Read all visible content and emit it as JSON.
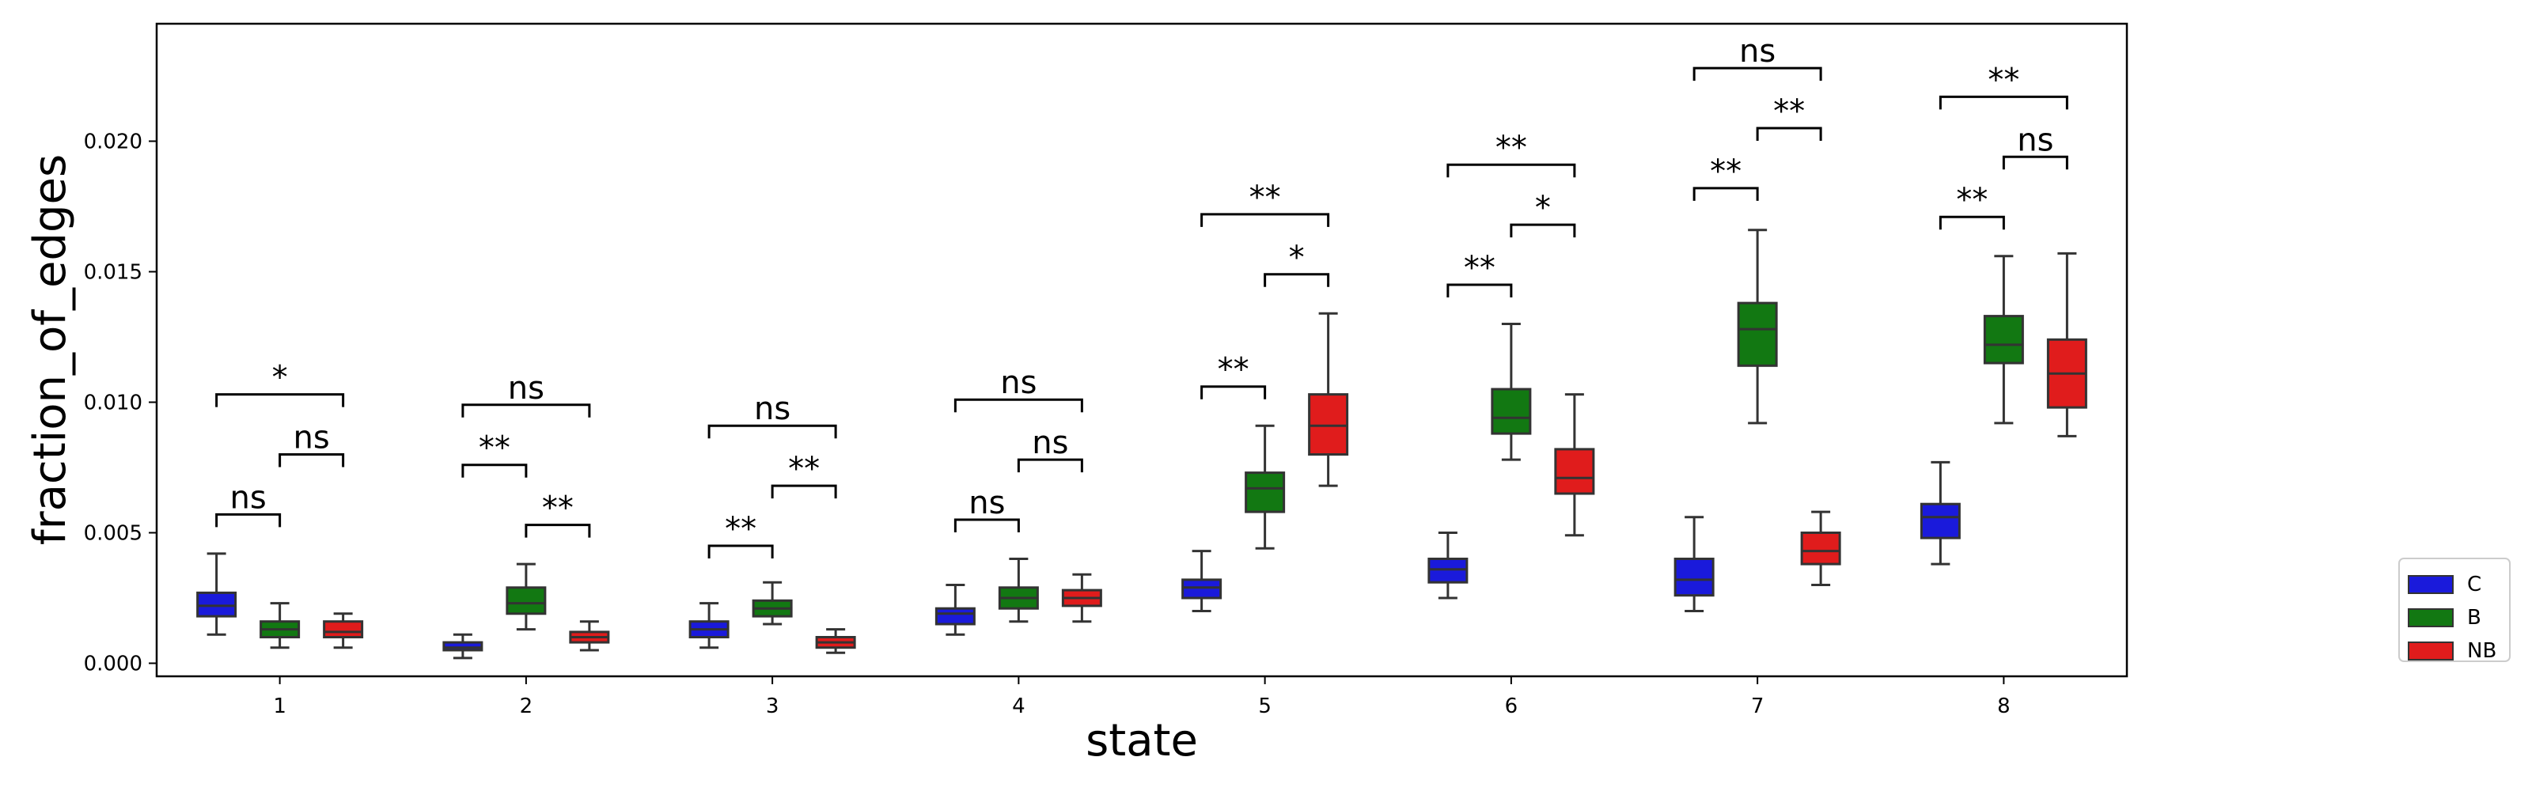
{
  "chart_data": {
    "type": "boxplot",
    "xlabel": "state",
    "ylabel": "fraction_of_edges",
    "categories": [
      "1",
      "2",
      "3",
      "4",
      "5",
      "6",
      "7",
      "8"
    ],
    "ylim": [
      -0.0005,
      0.0245
    ],
    "yticks": [
      0.0,
      0.005,
      0.01,
      0.015,
      0.02
    ],
    "ytick_labels": [
      "0.000",
      "0.005",
      "0.010",
      "0.015",
      "0.020"
    ],
    "grid": false,
    "legend_position": "right, outside plot area",
    "series": [
      {
        "name": "C",
        "color": "#1a1adb",
        "boxes": [
          {
            "whislo": 0.0011,
            "q1": 0.0018,
            "med": 0.0022,
            "q3": 0.0027,
            "whishi": 0.0042
          },
          {
            "whislo": 0.0002,
            "q1": 0.0005,
            "med": 0.0006,
            "q3": 0.0008,
            "whishi": 0.0011
          },
          {
            "whislo": 0.0006,
            "q1": 0.001,
            "med": 0.0013,
            "q3": 0.0016,
            "whishi": 0.0023
          },
          {
            "whislo": 0.0011,
            "q1": 0.0015,
            "med": 0.0019,
            "q3": 0.0021,
            "whishi": 0.003
          },
          {
            "whislo": 0.002,
            "q1": 0.0025,
            "med": 0.0029,
            "q3": 0.0032,
            "whishi": 0.0043
          },
          {
            "whislo": 0.0025,
            "q1": 0.0031,
            "med": 0.0036,
            "q3": 0.004,
            "whishi": 0.005
          },
          {
            "whislo": 0.002,
            "q1": 0.0026,
            "med": 0.0032,
            "q3": 0.004,
            "whishi": 0.0056
          },
          {
            "whislo": 0.0038,
            "q1": 0.0048,
            "med": 0.0056,
            "q3": 0.0061,
            "whishi": 0.0077
          }
        ]
      },
      {
        "name": "B",
        "color": "#127812",
        "boxes": [
          {
            "whislo": 0.0006,
            "q1": 0.001,
            "med": 0.0013,
            "q3": 0.0016,
            "whishi": 0.0023
          },
          {
            "whislo": 0.0013,
            "q1": 0.0019,
            "med": 0.0023,
            "q3": 0.0029,
            "whishi": 0.0038
          },
          {
            "whislo": 0.0015,
            "q1": 0.0018,
            "med": 0.0021,
            "q3": 0.0024,
            "whishi": 0.0031
          },
          {
            "whislo": 0.0016,
            "q1": 0.0021,
            "med": 0.0025,
            "q3": 0.0029,
            "whishi": 0.004
          },
          {
            "whislo": 0.0044,
            "q1": 0.0058,
            "med": 0.0067,
            "q3": 0.0073,
            "whishi": 0.0091
          },
          {
            "whislo": 0.0078,
            "q1": 0.0088,
            "med": 0.0094,
            "q3": 0.0105,
            "whishi": 0.013
          },
          {
            "whislo": 0.0092,
            "q1": 0.0114,
            "med": 0.0128,
            "q3": 0.0138,
            "whishi": 0.0166
          },
          {
            "whislo": 0.0092,
            "q1": 0.0115,
            "med": 0.0122,
            "q3": 0.0133,
            "whishi": 0.0156
          }
        ]
      },
      {
        "name": "NB",
        "color": "#e01c1c",
        "boxes": [
          {
            "whislo": 0.0006,
            "q1": 0.001,
            "med": 0.0012,
            "q3": 0.0016,
            "whishi": 0.0019
          },
          {
            "whislo": 0.0005,
            "q1": 0.0008,
            "med": 0.001,
            "q3": 0.0012,
            "whishi": 0.0016
          },
          {
            "whislo": 0.0004,
            "q1": 0.0006,
            "med": 0.0008,
            "q3": 0.001,
            "whishi": 0.0013
          },
          {
            "whislo": 0.0016,
            "q1": 0.0022,
            "med": 0.0025,
            "q3": 0.0028,
            "whishi": 0.0034
          },
          {
            "whislo": 0.0068,
            "q1": 0.008,
            "med": 0.0091,
            "q3": 0.0103,
            "whishi": 0.0134
          },
          {
            "whislo": 0.0049,
            "q1": 0.0065,
            "med": 0.0071,
            "q3": 0.0082,
            "whishi": 0.0103
          },
          {
            "whislo": 0.003,
            "q1": 0.0038,
            "med": 0.0043,
            "q3": 0.005,
            "whishi": 0.0058
          },
          {
            "whislo": 0.0087,
            "q1": 0.0098,
            "med": 0.0111,
            "q3": 0.0124,
            "whishi": 0.0157
          }
        ]
      }
    ],
    "annotations": [
      {
        "state": "1",
        "from": "C",
        "to": "B",
        "y": 0.0057,
        "label": "ns"
      },
      {
        "state": "1",
        "from": "B",
        "to": "NB",
        "y": 0.008,
        "label": "ns"
      },
      {
        "state": "1",
        "from": "C",
        "to": "NB",
        "y": 0.0103,
        "label": "*"
      },
      {
        "state": "2",
        "from": "C",
        "to": "B",
        "y": 0.0076,
        "label": "**"
      },
      {
        "state": "2",
        "from": "B",
        "to": "NB",
        "y": 0.0053,
        "label": "**"
      },
      {
        "state": "2",
        "from": "C",
        "to": "NB",
        "y": 0.0099,
        "label": "ns"
      },
      {
        "state": "3",
        "from": "C",
        "to": "B",
        "y": 0.0045,
        "label": "**"
      },
      {
        "state": "3",
        "from": "B",
        "to": "NB",
        "y": 0.0068,
        "label": "**"
      },
      {
        "state": "3",
        "from": "C",
        "to": "NB",
        "y": 0.0091,
        "label": "ns"
      },
      {
        "state": "4",
        "from": "C",
        "to": "B",
        "y": 0.0055,
        "label": "ns"
      },
      {
        "state": "4",
        "from": "B",
        "to": "NB",
        "y": 0.0078,
        "label": "ns"
      },
      {
        "state": "4",
        "from": "C",
        "to": "NB",
        "y": 0.0101,
        "label": "ns"
      },
      {
        "state": "5",
        "from": "C",
        "to": "B",
        "y": 0.0106,
        "label": "**"
      },
      {
        "state": "5",
        "from": "B",
        "to": "NB",
        "y": 0.0149,
        "label": "*"
      },
      {
        "state": "5",
        "from": "C",
        "to": "NB",
        "y": 0.0172,
        "label": "**"
      },
      {
        "state": "6",
        "from": "C",
        "to": "B",
        "y": 0.0145,
        "label": "**"
      },
      {
        "state": "6",
        "from": "B",
        "to": "NB",
        "y": 0.0168,
        "label": "*"
      },
      {
        "state": "6",
        "from": "C",
        "to": "NB",
        "y": 0.0191,
        "label": "**"
      },
      {
        "state": "7",
        "from": "C",
        "to": "B",
        "y": 0.0182,
        "label": "**"
      },
      {
        "state": "7",
        "from": "B",
        "to": "NB",
        "y": 0.0205,
        "label": "**"
      },
      {
        "state": "7",
        "from": "C",
        "to": "NB",
        "y": 0.0228,
        "label": "ns"
      },
      {
        "state": "8",
        "from": "C",
        "to": "B",
        "y": 0.0171,
        "label": "**"
      },
      {
        "state": "8",
        "from": "B",
        "to": "NB",
        "y": 0.0194,
        "label": "ns"
      },
      {
        "state": "8",
        "from": "C",
        "to": "NB",
        "y": 0.0217,
        "label": "**"
      }
    ]
  }
}
